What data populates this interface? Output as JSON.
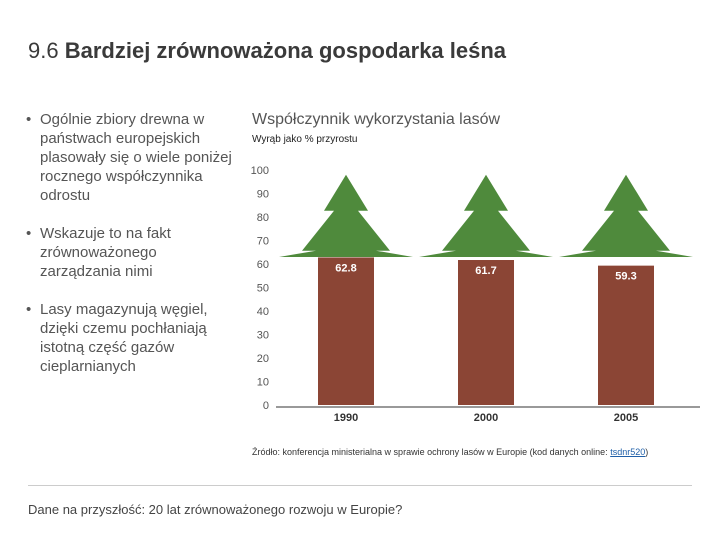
{
  "slide": {
    "title_number": "9.6",
    "title_text": "Bardziej zrównoważona gospodarka leśna",
    "bullets": [
      "Ogólnie zbiory drewna w państwach europejskich plasowały się o wiele poniżej rocznego współczynnika odrostu",
      "Wskazuje to na fakt zrównoważonego zarządzania nimi",
      "Lasy magazynują węgiel, dzięki czemu pochłaniają istotną część gazów cieplarnianych"
    ],
    "source_prefix": "Źródło: konferencja ministerialna w sprawie ochrony lasów w Europie (kod danych online: ",
    "source_link": "tsdnr520",
    "source_suffix": ")",
    "footer": "Dane na przyszłość: 20 lat zrównoważonego rozwoju w Europie?"
  },
  "chart_data": {
    "type": "bar",
    "title": "Współczynnik wykorzystania lasów",
    "subtitle": "Wyrąb jako % przyrostu",
    "categories": [
      "1990",
      "2000",
      "2005"
    ],
    "values": [
      62.8,
      61.7,
      59.3
    ],
    "value_labels": [
      "62.8",
      "61.7",
      "59.3"
    ],
    "ylim": [
      0,
      100
    ],
    "yticks": [
      "0",
      "10",
      "20",
      "30",
      "40",
      "50",
      "60",
      "70",
      "80",
      "90",
      "100"
    ],
    "grid": false,
    "colors": {
      "trunk": "#8b4535",
      "tree": "#4f8a3c",
      "axis": "#999999",
      "label": "#ffffff"
    }
  }
}
